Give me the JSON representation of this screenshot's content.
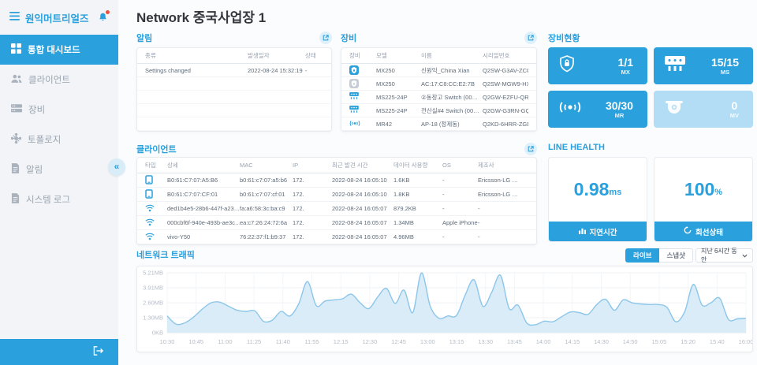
{
  "colors": {
    "primary": "#2aa0dc",
    "primary_light": "#b3ddf4",
    "chart_fill": "#d9ecf8",
    "chart_line": "#8cc6e9",
    "sidebar_bg": "#f2f4f7"
  },
  "sidebar": {
    "org_name": "원익머트리얼즈",
    "items": [
      {
        "icon": "dashboard-icon",
        "label": "통합 대시보드",
        "active": true
      },
      {
        "icon": "clients-icon",
        "label": "클라이언트",
        "active": false
      },
      {
        "icon": "devices-icon",
        "label": "장비",
        "active": false
      },
      {
        "icon": "topology-icon",
        "label": "토폴로지",
        "active": false
      },
      {
        "icon": "alerts-icon",
        "label": "알림",
        "active": false
      },
      {
        "icon": "system-log-icon",
        "label": "시스템 로그",
        "active": false
      }
    ],
    "collapse_glyph": "«"
  },
  "header": {
    "title": "Network 중국사업장 1"
  },
  "alerts_panel": {
    "title": "알림",
    "columns": [
      "종류",
      "발생일자",
      "상태"
    ],
    "rows": [
      {
        "type": "Settings changed",
        "date": "2022-08-24 15:32:19",
        "status": "-"
      }
    ]
  },
  "devices_panel": {
    "title": "장비",
    "columns": [
      "장비",
      "모델",
      "이름",
      "시리얼번호"
    ],
    "rows": [
      {
        "icon": "security-appliance-online-icon",
        "model": "MX250",
        "name": "신원익_China Xian",
        "serial": "Q2SW-G3AV-ZCCL"
      },
      {
        "icon": "security-appliance-offline-icon",
        "model": "MX250",
        "name": "AC:17:C8:CC:E2:7B",
        "serial": "Q2SW-MGW9-HXN8"
      },
      {
        "icon": "switch-icon",
        "model": "MS225-24P",
        "name": "②동창고 Switch (00…",
        "serial": "Q2GW-EZFU-QRNJ"
      },
      {
        "icon": "switch-icon",
        "model": "MS225-24P",
        "name": "전산실#4 Switch (00…",
        "serial": "Q2GW-G3RN-GQY9"
      },
      {
        "icon": "access-point-icon",
        "model": "MR42",
        "name": "AP-18 (정제동)",
        "serial": "Q2KD-6HRR-ZGDG"
      }
    ]
  },
  "device_status_panel": {
    "title": "장비현황",
    "cards": [
      {
        "icon": "shield-icon",
        "value": "1/1",
        "label": "MX",
        "state": "online"
      },
      {
        "icon": "switch-icon",
        "value": "15/15",
        "label": "MS",
        "state": "online"
      },
      {
        "icon": "wireless-icon",
        "value": "30/30",
        "label": "MR",
        "state": "online"
      },
      {
        "icon": "camera-icon",
        "value": "0",
        "label": "MV",
        "state": "empty"
      }
    ]
  },
  "line_health_panel": {
    "title": "LINE HEALTH",
    "cards": [
      {
        "value": "0.98",
        "unit": "ms",
        "button": "지연시간",
        "icon": "bar-chart-icon"
      },
      {
        "value": "100",
        "unit": "%",
        "button": "회선상태",
        "icon": "refresh-icon"
      }
    ]
  },
  "clients_panel": {
    "title": "클라이언트",
    "columns": [
      "타입",
      "상세",
      "MAC",
      "IP",
      "최근 발견 시간",
      "데이터 사용량",
      "OS",
      "제조사"
    ],
    "rows": [
      {
        "icon": "tablet-icon",
        "detail": "B0:61:C7:07:A5:B6",
        "mac": "b0:61:c7:07:a5:b6",
        "ip": "172.",
        "last_seen": "2022-08-24 16:05:10",
        "usage": "1.6KB",
        "os": "-",
        "vendor": "Ericsson-LG …"
      },
      {
        "icon": "tablet-icon",
        "detail": "B0:61:C7:07:CF:01",
        "mac": "b0:61:c7:07:cf:01",
        "ip": "172.",
        "last_seen": "2022-08-24 16:05:10",
        "usage": "1.8KB",
        "os": "-",
        "vendor": "Ericsson-LG …"
      },
      {
        "icon": "wifi-icon",
        "detail": "ded1b4e5-28b6-447f-a23…",
        "mac": "fa:a6:58:3c:ba:c9",
        "ip": "172.",
        "last_seen": "2022-08-24 16:05:07",
        "usage": "879.2KB",
        "os": "-",
        "vendor": "-"
      },
      {
        "icon": "wifi-icon",
        "detail": "000cbf6f-940e-493b-ae3c…",
        "mac": "ea:c7:26:24:72:6a",
        "ip": "172.",
        "last_seen": "2022-08-24 16:05:07",
        "usage": "1.34MB",
        "os": "Apple iPhone",
        "vendor": "-"
      },
      {
        "icon": "wifi-icon",
        "detail": "vivo-Y50",
        "mac": "76:22:37:f1:b9:37",
        "ip": "172.",
        "last_seen": "2022-08-24 16:05:07",
        "usage": "4.96MB",
        "os": "-",
        "vendor": "-"
      }
    ]
  },
  "traffic_panel": {
    "title": "네트워크 트래픽",
    "live_label": "라이브",
    "snapshot_label": "스냅샷",
    "range_label": "지난 6시간 동안"
  },
  "chart_data": {
    "type": "area",
    "title": "네트워크 트래픽",
    "xlabel": "",
    "ylabel": "traffic",
    "grid": true,
    "legend": "none",
    "y_max_mb": 5.21,
    "y_ticks": [
      "5.21MB",
      "3.91MB",
      "2.60MB",
      "1.30MB",
      "0KB"
    ],
    "y_tick_values_mb": [
      5.21,
      3.91,
      2.6,
      1.3,
      0
    ],
    "x_ticks": [
      "10:30",
      "10:45",
      "11:00",
      "11:25",
      "11:40",
      "11:55",
      "12:15",
      "12:30",
      "12:45",
      "13:00",
      "13:15",
      "13:30",
      "13:45",
      "14:00",
      "14:15",
      "14:30",
      "14:50",
      "15:05",
      "15:20",
      "15:40",
      "16:00"
    ],
    "values_mb": [
      1.45,
      0.75,
      0.85,
      1.35,
      2.05,
      2.6,
      2.65,
      2.3,
      1.95,
      1.85,
      1.9,
      0.98,
      1.1,
      1.85,
      1.45,
      2.5,
      4.45,
      2.35,
      2.75,
      2.85,
      2.95,
      3.35,
      2.6,
      2.1,
      3.1,
      3.85,
      2.55,
      3.7,
      1.75,
      5.2,
      2.3,
      1.25,
      1.45,
      1.5,
      3.3,
      4.6,
      2.3,
      3.5,
      5.0,
      2.1,
      2.4,
      0.85,
      0.7,
      1.0,
      0.95,
      1.4,
      1.8,
      1.75,
      1.6,
      2.45,
      2.9,
      1.95,
      2.85,
      2.6,
      2.5,
      2.45,
      2.45,
      2.2,
      0.95,
      1.8,
      4.2,
      2.4,
      2.6,
      3.0,
      1.15,
      1.2,
      1.25
    ]
  }
}
